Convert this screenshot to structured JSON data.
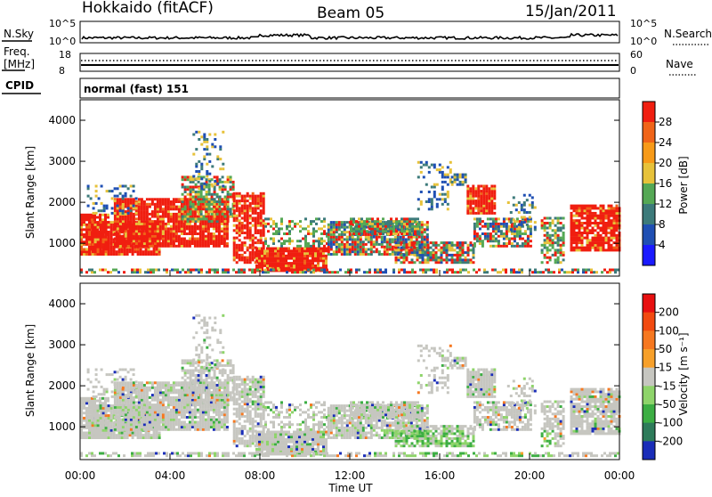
{
  "header": {
    "site": "Hokkaido (fitACF)",
    "beam": "Beam 05",
    "date": "15/Jan/2011"
  },
  "noise_panel": {
    "left_label": "N.Sky",
    "right_label": "N.Search",
    "left_ticks": [
      "10^5",
      "10^0"
    ],
    "right_ticks": [
      "10^5",
      "10^0"
    ]
  },
  "freq_panel": {
    "left_label_line1": "Freq.",
    "left_label_line2": "[MHz]",
    "right_label": "Nave",
    "left_ticks": [
      "18",
      "8"
    ],
    "right_ticks": [
      "60",
      "0"
    ]
  },
  "cpid_panel": {
    "label": "CPID",
    "text": "normal (fast) 151"
  },
  "chart_data": [
    {
      "type": "heatmap",
      "name": "power",
      "ylabel": "Slant Range [km]",
      "yticks": [
        "1000",
        "2000",
        "3000",
        "4000"
      ],
      "ylim": [
        200,
        4500
      ],
      "colorbar": {
        "label": "Power [dB]",
        "ticks": [
          "4",
          "8",
          "12",
          "16",
          "20",
          "24",
          "28"
        ],
        "colors": [
          "#1a1aff",
          "#1f4fb3",
          "#3c7a7a",
          "#55a855",
          "#e7c23a",
          "#f79a18",
          "#f06418",
          "#f01e10"
        ]
      }
    },
    {
      "type": "heatmap",
      "name": "velocity",
      "ylabel": "Slant Range [km]",
      "yticks": [
        "1000",
        "2000",
        "3000",
        "4000"
      ],
      "ylim": [
        200,
        4500
      ],
      "colorbar": {
        "label": "Velocity [m s⁻¹]",
        "ticks": [
          "200",
          "100",
          "50",
          "15",
          "-15",
          "-50",
          "-100",
          "-200"
        ],
        "colors": [
          "#1a2db8",
          "#2e7b5a",
          "#3cae43",
          "#8ed46a",
          "#c6c6c0",
          "#f7a02a",
          "#f67820",
          "#f24a10",
          "#e81010"
        ]
      },
      "xlabel": "Time UT",
      "xticks": [
        "00:00",
        "04:00",
        "08:00",
        "12:00",
        "16:00",
        "20:00",
        "00:00"
      ]
    }
  ]
}
